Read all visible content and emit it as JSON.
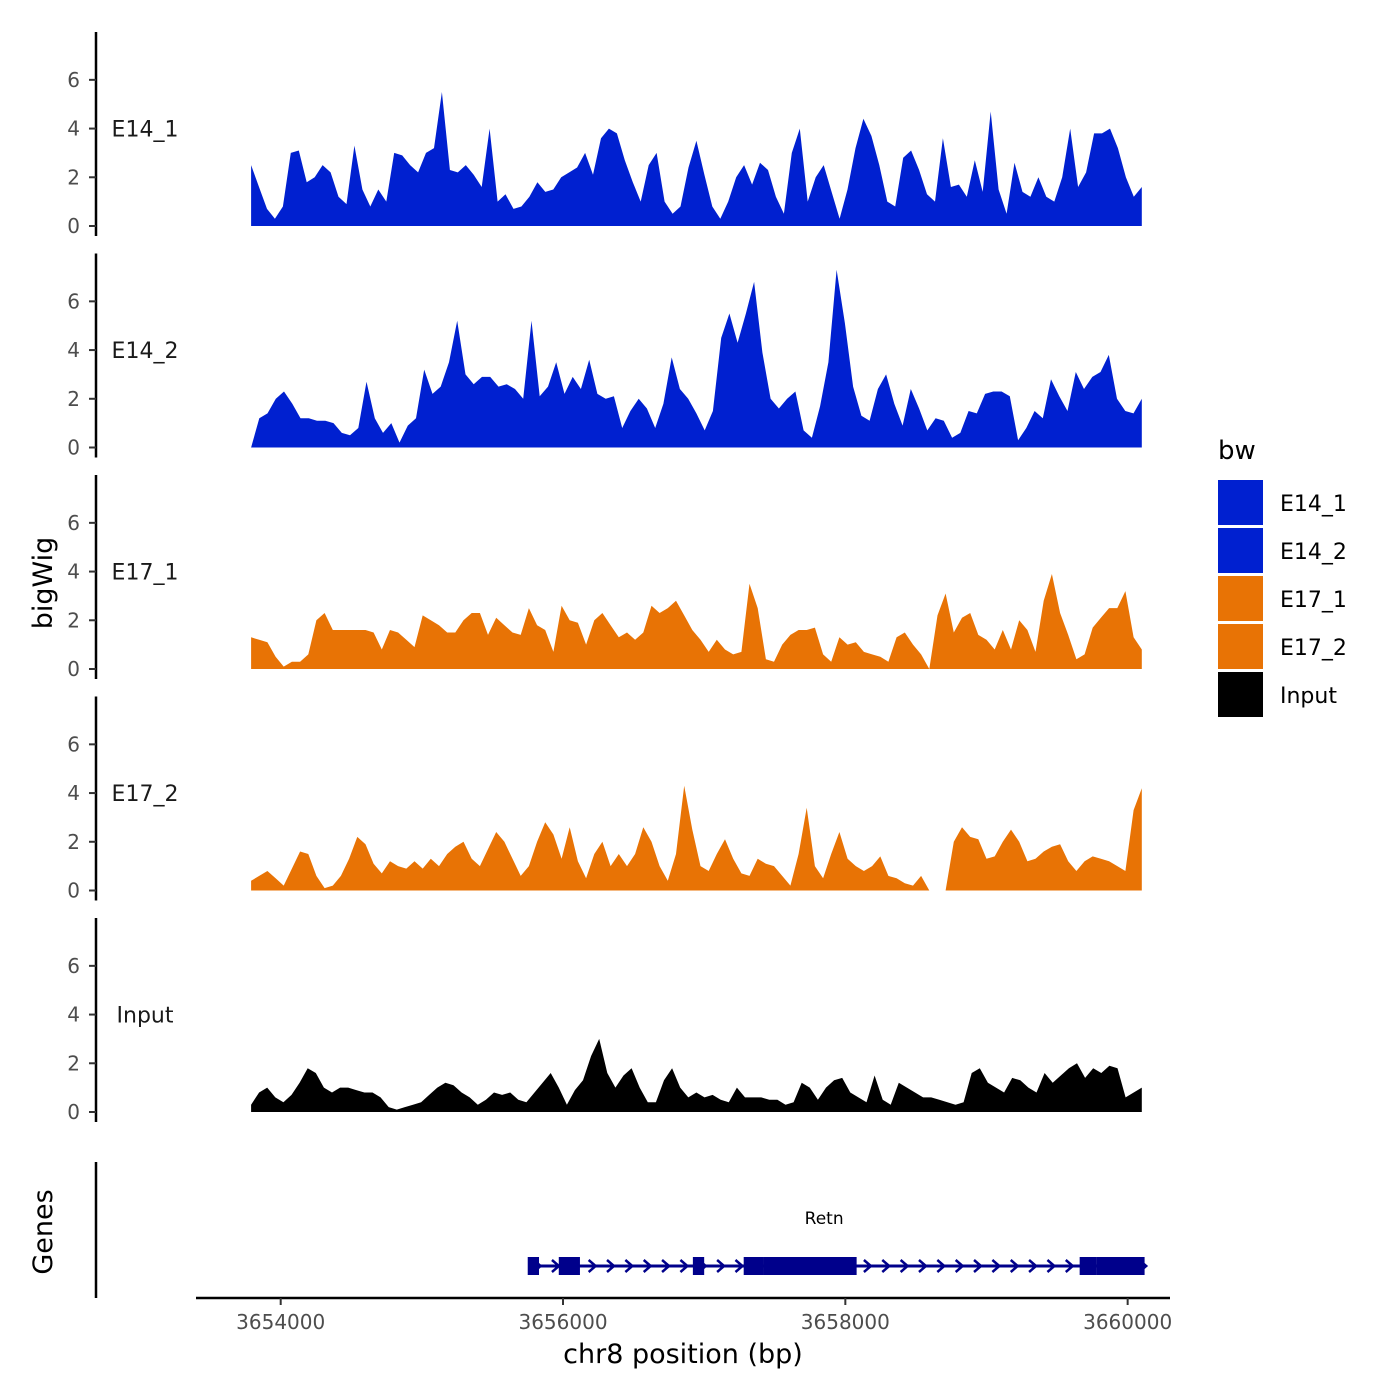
{
  "chart_data": {
    "type": "area",
    "chromosome": "chr8",
    "xlabel": "chr8 position (bp)",
    "ylabel": "bigWig",
    "genes_label": "Genes",
    "xlim": [
      3653400,
      3660300
    ],
    "x_ticks": [
      3654000,
      3656000,
      3658000,
      3660000
    ],
    "x_tick_labels": [
      "3654000",
      "3656000",
      "3658000",
      "3660000"
    ],
    "ylim": [
      0,
      7.8
    ],
    "y_ticks": [
      0,
      2,
      4,
      6
    ],
    "y_tick_labels": [
      "0",
      "2",
      "4",
      "6"
    ],
    "region": [
      3653790,
      3660100
    ],
    "legend": {
      "title": "bw",
      "entries": [
        {
          "label": "E14_1",
          "color": "#0020D0"
        },
        {
          "label": "E14_2",
          "color": "#0020D0"
        },
        {
          "label": "E17_1",
          "color": "#E87305"
        },
        {
          "label": "E17_2",
          "color": "#E87305"
        },
        {
          "label": "Input",
          "color": "#000000"
        }
      ]
    },
    "series": [
      {
        "name": "E14_1",
        "color": "#0020D0",
        "values": [
          2.5,
          1.6,
          0.7,
          0.3,
          0.8,
          3.0,
          3.1,
          1.8,
          2.0,
          2.5,
          2.2,
          1.2,
          0.9,
          3.3,
          1.5,
          0.8,
          1.5,
          1.0,
          3.0,
          2.9,
          2.5,
          2.2,
          3.0,
          3.2,
          5.5,
          2.3,
          2.2,
          2.5,
          2.1,
          1.6,
          4.0,
          1.0,
          1.3,
          0.7,
          0.8,
          1.2,
          1.8,
          1.4,
          1.5,
          2.0,
          2.2,
          2.4,
          3.0,
          2.1,
          3.6,
          4.0,
          3.8,
          2.7,
          1.8,
          1.0,
          2.5,
          3.0,
          1.0,
          0.5,
          0.8,
          2.4,
          3.5,
          2.1,
          0.8,
          0.3,
          1.0,
          2.0,
          2.5,
          1.7,
          2.6,
          2.3,
          1.2,
          0.5,
          3.0,
          4.0,
          1.0,
          2.0,
          2.5,
          1.4,
          0.3,
          1.5,
          3.2,
          4.4,
          3.7,
          2.5,
          1.0,
          0.8,
          2.8,
          3.1,
          2.3,
          1.3,
          1.0,
          3.6,
          1.6,
          1.7,
          1.2,
          2.7,
          1.4,
          4.7,
          1.5,
          0.5,
          2.6,
          1.4,
          1.2,
          2.0,
          1.2,
          1.0,
          2.0,
          4.0,
          1.6,
          2.2,
          3.8,
          3.8,
          4.0,
          3.2,
          2.0,
          1.2,
          1.6
        ]
      },
      {
        "name": "E14_2",
        "color": "#0020D0",
        "values": [
          0.0,
          1.2,
          1.4,
          2.0,
          2.3,
          1.8,
          1.2,
          1.2,
          1.1,
          1.1,
          1.0,
          0.6,
          0.5,
          0.8,
          2.7,
          1.2,
          0.6,
          1.0,
          0.2,
          0.9,
          1.2,
          3.2,
          2.2,
          2.5,
          3.5,
          5.2,
          3.0,
          2.6,
          2.9,
          2.9,
          2.5,
          2.6,
          2.4,
          2.0,
          5.2,
          2.1,
          2.5,
          3.5,
          2.2,
          2.9,
          2.4,
          3.6,
          2.2,
          2.0,
          2.1,
          0.8,
          1.5,
          2.0,
          1.6,
          0.8,
          1.8,
          3.7,
          2.4,
          2.0,
          1.4,
          0.7,
          1.5,
          4.5,
          5.5,
          4.3,
          5.5,
          6.8,
          3.9,
          2.0,
          1.6,
          2.0,
          2.3,
          0.7,
          0.4,
          1.7,
          3.5,
          7.3,
          5.1,
          2.5,
          1.3,
          1.1,
          2.4,
          3.0,
          1.8,
          0.9,
          2.4,
          1.6,
          0.7,
          1.2,
          1.1,
          0.4,
          0.6,
          1.5,
          1.4,
          2.2,
          2.3,
          2.3,
          2.1,
          0.3,
          0.8,
          1.5,
          1.2,
          2.8,
          2.1,
          1.5,
          3.1,
          2.4,
          2.9,
          3.1,
          3.8,
          2.0,
          1.5,
          1.4,
          2.0
        ]
      },
      {
        "name": "E17_1",
        "color": "#E87305",
        "values": [
          1.3,
          1.2,
          1.1,
          0.5,
          0.1,
          0.3,
          0.3,
          0.6,
          2.0,
          2.3,
          1.6,
          1.6,
          1.6,
          1.6,
          1.6,
          1.5,
          0.8,
          1.6,
          1.5,
          1.2,
          0.9,
          2.2,
          2.0,
          1.8,
          1.5,
          1.5,
          2.0,
          2.3,
          2.3,
          1.4,
          2.1,
          1.8,
          1.5,
          1.4,
          2.5,
          1.8,
          1.6,
          0.7,
          2.6,
          2.0,
          1.9,
          1.0,
          2.0,
          2.3,
          1.8,
          1.3,
          1.5,
          1.2,
          1.5,
          2.6,
          2.3,
          2.5,
          2.8,
          2.2,
          1.6,
          1.2,
          0.7,
          1.2,
          0.8,
          0.6,
          0.7,
          3.5,
          2.5,
          0.4,
          0.3,
          1.0,
          1.4,
          1.6,
          1.6,
          1.7,
          0.6,
          0.3,
          1.3,
          1.0,
          1.1,
          0.7,
          0.6,
          0.5,
          0.3,
          1.3,
          1.5,
          1.0,
          0.6,
          0.0,
          2.2,
          3.1,
          1.5,
          2.1,
          2.3,
          1.4,
          1.2,
          0.8,
          1.6,
          0.8,
          2.0,
          1.6,
          0.7,
          2.8,
          3.9,
          2.3,
          1.4,
          0.4,
          0.6,
          1.7,
          2.1,
          2.5,
          2.5,
          3.2,
          1.3,
          0.8
        ]
      },
      {
        "name": "E17_2",
        "color": "#E87305",
        "values": [
          0.4,
          0.6,
          0.8,
          0.5,
          0.2,
          0.9,
          1.6,
          1.5,
          0.6,
          0.1,
          0.2,
          0.6,
          1.3,
          2.2,
          1.9,
          1.1,
          0.7,
          1.2,
          1.0,
          0.9,
          1.2,
          0.9,
          1.3,
          1.0,
          1.5,
          1.8,
          2.0,
          1.3,
          1.0,
          1.7,
          2.4,
          2.0,
          1.3,
          0.6,
          1.0,
          2.0,
          2.8,
          2.3,
          1.3,
          2.6,
          1.2,
          0.5,
          1.5,
          2.0,
          1.0,
          1.5,
          1.0,
          1.5,
          2.6,
          2.0,
          1.0,
          0.4,
          1.5,
          4.3,
          2.5,
          1.0,
          0.8,
          1.5,
          2.1,
          1.3,
          0.7,
          0.6,
          1.3,
          1.1,
          1.0,
          0.6,
          0.2,
          1.5,
          3.4,
          1.0,
          0.5,
          1.5,
          2.4,
          1.3,
          1.0,
          0.8,
          1.0,
          1.4,
          0.6,
          0.5,
          0.3,
          0.2,
          0.6,
          0.0,
          0.0,
          0.0,
          2.0,
          2.6,
          2.2,
          2.1,
          1.3,
          1.4,
          2.0,
          2.5,
          2.0,
          1.2,
          1.3,
          1.6,
          1.8,
          1.9,
          1.2,
          0.8,
          1.2,
          1.4,
          1.3,
          1.2,
          1.0,
          0.8,
          3.3,
          4.2
        ]
      },
      {
        "name": "Input",
        "color": "#000000",
        "values": [
          0.3,
          0.8,
          1.0,
          0.6,
          0.4,
          0.7,
          1.2,
          1.8,
          1.6,
          1.0,
          0.8,
          1.0,
          1.0,
          0.9,
          0.8,
          0.8,
          0.6,
          0.2,
          0.1,
          0.2,
          0.3,
          0.4,
          0.7,
          1.0,
          1.2,
          1.1,
          0.8,
          0.6,
          0.3,
          0.5,
          0.8,
          0.7,
          0.8,
          0.5,
          0.4,
          0.8,
          1.2,
          1.6,
          1.0,
          0.3,
          0.9,
          1.3,
          2.3,
          3.0,
          1.6,
          1.0,
          1.5,
          1.8,
          1.0,
          0.4,
          0.4,
          1.3,
          1.8,
          1.0,
          0.6,
          0.8,
          0.6,
          0.7,
          0.5,
          0.4,
          1.0,
          0.6,
          0.6,
          0.6,
          0.5,
          0.5,
          0.3,
          0.4,
          1.2,
          1.0,
          0.5,
          1.0,
          1.3,
          1.4,
          0.8,
          0.6,
          0.4,
          1.5,
          0.5,
          0.3,
          1.2,
          1.0,
          0.8,
          0.6,
          0.6,
          0.5,
          0.4,
          0.3,
          0.4,
          1.6,
          1.8,
          1.2,
          1.0,
          0.8,
          1.4,
          1.3,
          1.0,
          0.8,
          1.6,
          1.2,
          1.5,
          1.8,
          2.0,
          1.4,
          1.8,
          1.6,
          1.9,
          1.8,
          0.6,
          0.8,
          1.0
        ]
      }
    ],
    "gene": {
      "name": "Retn",
      "strand": "+",
      "line": [
        3655800,
        3660120
      ],
      "exons": [
        [
          3655750,
          3655830
        ],
        [
          3655970,
          3656120
        ],
        [
          3656920,
          3657000
        ],
        [
          3657280,
          3657420
        ],
        [
          3657420,
          3658080
        ],
        [
          3659660,
          3659780
        ],
        [
          3659780,
          3660120
        ]
      ]
    }
  }
}
